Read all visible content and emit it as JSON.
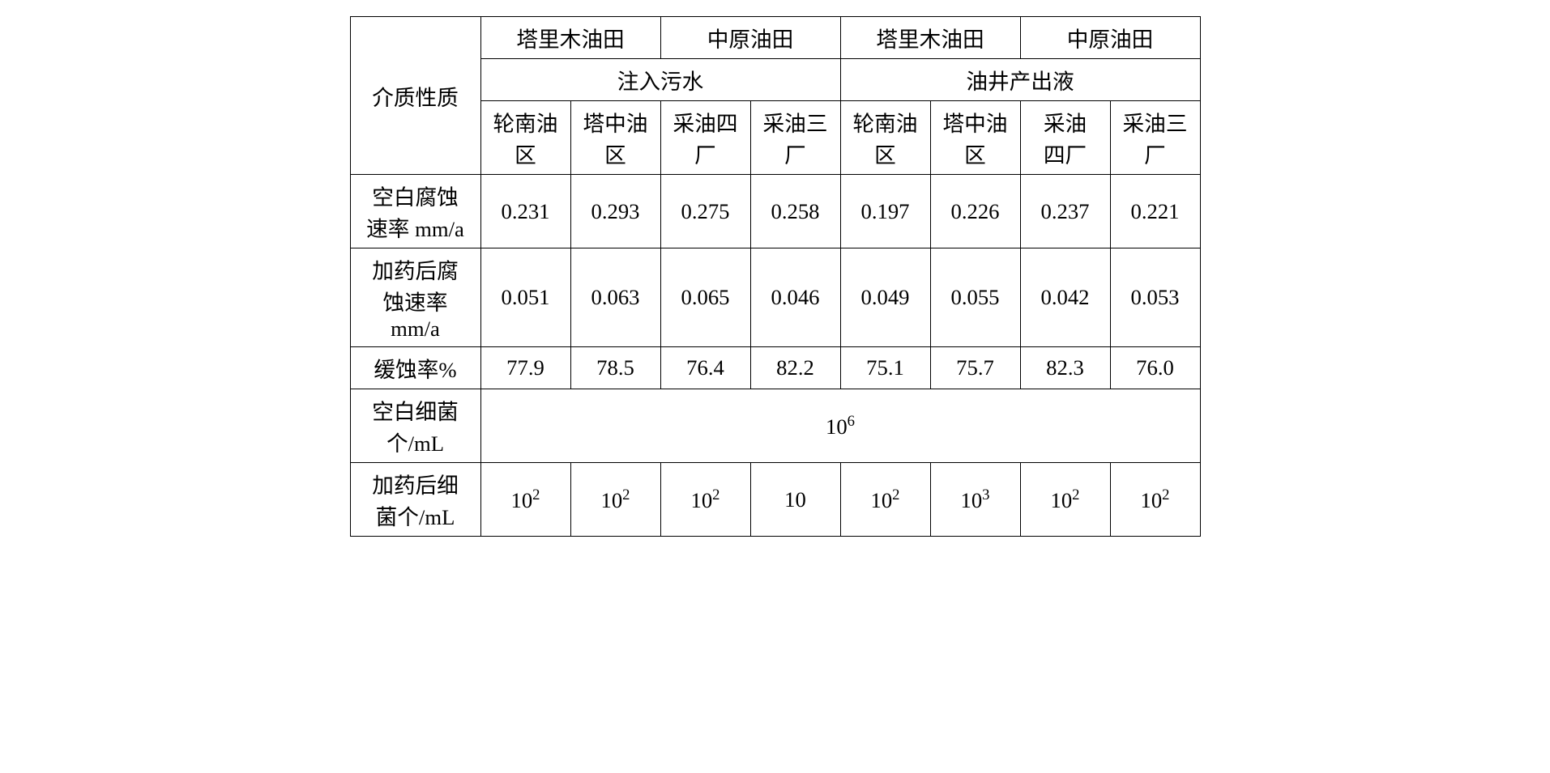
{
  "table": {
    "col_header_label": "介质性质",
    "top_groups": [
      "塔里木油田",
      "中原油田",
      "塔里木油田",
      "中原油田"
    ],
    "mid_groups": [
      "注入污水",
      "油井产出液"
    ],
    "sub_headers": [
      "轮南油<br>区",
      "塔中油<br>区",
      "采油四<br>厂",
      "采油三<br>厂",
      "轮南油<br>区",
      "塔中油<br>区",
      "采油<br>四厂",
      "采油三<br>厂"
    ],
    "rows": [
      {
        "label": "空白腐蚀<br>速率 mm/a",
        "cells": [
          "0.231",
          "0.293",
          "0.275",
          "0.258",
          "0.197",
          "0.226",
          "0.237",
          "0.221"
        ]
      },
      {
        "label": "加药后腐<br>蚀速率<br>mm/a",
        "cells": [
          "0.051",
          "0.063",
          "0.065",
          "0.046",
          "0.049",
          "0.055",
          "0.042",
          "0.053"
        ]
      },
      {
        "label": "缓蚀率%",
        "cells": [
          "77.9",
          "78.5",
          "76.4",
          "82.2",
          "75.1",
          "75.7",
          "82.3",
          "76.0"
        ]
      },
      {
        "label": "空白细菌<br>个/mL",
        "merged": "10<sup>6</sup>"
      },
      {
        "label": "加药后细<br>菌个/mL",
        "cells": [
          "10<sup>2</sup>",
          "10<sup>2</sup>",
          "10<sup>2</sup>",
          "10",
          "10<sup>2</sup>",
          "10<sup>3</sup>",
          "10<sup>2</sup>",
          "10<sup>2</sup>"
        ]
      }
    ],
    "font_size_pt": 20,
    "border_color": "#000000",
    "background_color": "#ffffff",
    "text_color": "#000000"
  }
}
